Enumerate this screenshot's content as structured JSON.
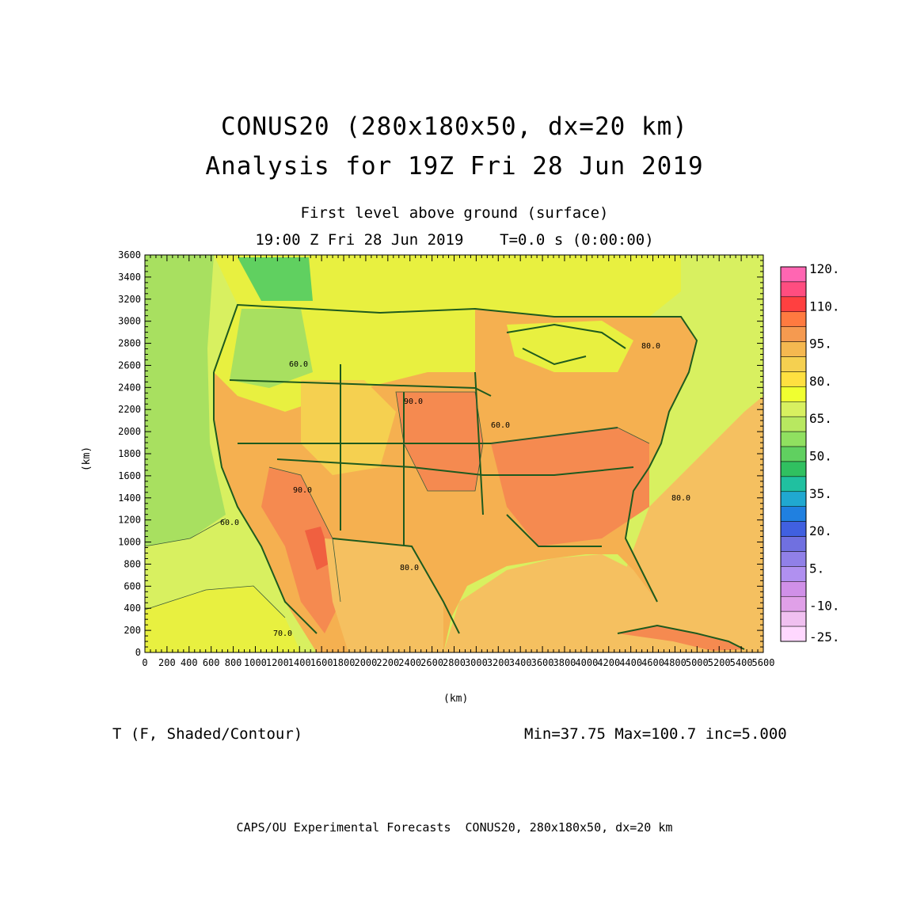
{
  "title": {
    "line1": "CONUS20 (280x180x50, dx=20 km)",
    "line2": "Analysis for 19Z Fri 28 Jun 2019"
  },
  "subtitle": {
    "line1": "First level above ground (surface)",
    "line2": "19:00 Z Fri 28 Jun 2019    T=0.0 s (0:00:00)"
  },
  "axes": {
    "xlabel": "(km)",
    "ylabel": "(km)",
    "xticks": [
      "0",
      "200",
      "400",
      "600",
      "800",
      "1000",
      "1200",
      "1400",
      "1600",
      "1800",
      "2000",
      "2200",
      "2400",
      "2600",
      "2800",
      "3000",
      "3200",
      "3400",
      "3600",
      "3800",
      "4000",
      "4200",
      "4400",
      "4600",
      "4800",
      "5000",
      "5200",
      "5400",
      "5600"
    ],
    "yticks": [
      "0",
      "200",
      "400",
      "600",
      "800",
      "1000",
      "1200",
      "1400",
      "1600",
      "1800",
      "2000",
      "2200",
      "2400",
      "2600",
      "2800",
      "3000",
      "3200",
      "3400",
      "3600"
    ],
    "xrange": [
      0,
      5600
    ],
    "yrange": [
      0,
      3600
    ]
  },
  "colorbar": {
    "labels": [
      "120.",
      "110.",
      "95.",
      "80.",
      "65.",
      "50.",
      "35.",
      "20.",
      "5.",
      "-10.",
      "-25."
    ],
    "colors": [
      "#ff66b2",
      "#ff4d80",
      "#ff4040",
      "#ff7a40",
      "#f59a50",
      "#f5b850",
      "#f5d050",
      "#ffe040",
      "#f0ff30",
      "#d8f060",
      "#b8e860",
      "#90e060",
      "#60d060",
      "#30c060",
      "#20c0a0",
      "#20a8d0",
      "#2080e0",
      "#4060e0",
      "#7070e0",
      "#9080e8",
      "#b090f0",
      "#d090e8",
      "#e0a0e8",
      "#f0c0f0",
      "#ffd8ff"
    ]
  },
  "footer": {
    "variable": "T (F, Shaded/Contour)",
    "stats": "Min=37.75 Max=100.7 inc=5.000",
    "credit": "CAPS/OU Experimental Forecasts  CONUS20, 280x180x50, dx=20 km"
  },
  "contour_labels": [
    "60.0",
    "70.0",
    "80.0",
    "90.0",
    "60.0",
    "70.0",
    "80.0",
    "90.0",
    "80.0",
    "80.0"
  ],
  "colors": {
    "border": "#1e5a1e",
    "ocean_pacific": "#d8f060",
    "ocean_atlantic": "#f5c060",
    "land_hot": "#f58a50",
    "land_warm": "#f5b050",
    "land_mild": "#f5d050",
    "land_cool": "#e8f040",
    "land_cold": "#a8e060"
  }
}
